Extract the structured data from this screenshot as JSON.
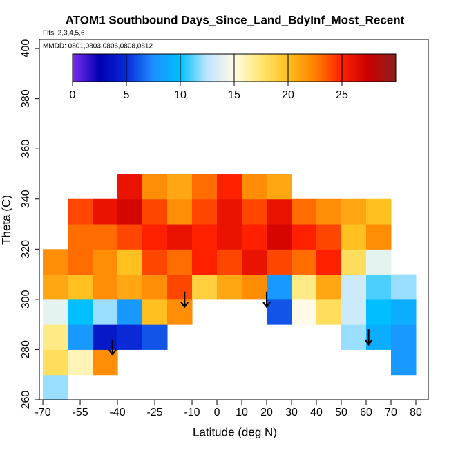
{
  "chart_data": {
    "type": "heatmap",
    "title": "ATOM1 Southbound Days_Since_Land_BdyInf_Most_Recent",
    "subtitle": "Flts: 2,3,4,5,6",
    "annotation": "MMDD: 0801,0803,0806,0808,0812",
    "x_label": "Latitude (deg N)",
    "y_label": "Theta (C)",
    "xlim": [
      -71.4,
      85
    ],
    "ylim": [
      260,
      403.6
    ],
    "xticks": [
      -70,
      -55,
      -40,
      -25,
      -10,
      0,
      10,
      20,
      30,
      40,
      50,
      60,
      70,
      80
    ],
    "yticks": [
      260,
      280,
      300,
      320,
      340,
      360,
      380,
      400
    ],
    "x_bins": [
      -70,
      -60,
      -50,
      -40,
      -30,
      -20,
      -10,
      0,
      10,
      20,
      30,
      40,
      50,
      60,
      70,
      80
    ],
    "y_bins": [
      260,
      270,
      280,
      290,
      300,
      310,
      320,
      330,
      340,
      350
    ],
    "values": [
      [
        12,
        null,
        null,
        null,
        null,
        null,
        null,
        null,
        null,
        null,
        null,
        null,
        null,
        null,
        null
      ],
      [
        18,
        16,
        22,
        null,
        null,
        null,
        null,
        null,
        null,
        null,
        null,
        null,
        null,
        null,
        8
      ],
      [
        17,
        8,
        4,
        5,
        6,
        null,
        null,
        null,
        null,
        null,
        null,
        null,
        12,
        9,
        8
      ],
      [
        14,
        10,
        12,
        8,
        20,
        22,
        null,
        null,
        null,
        6,
        15,
        18,
        13,
        10,
        9
      ],
      [
        21,
        20,
        22,
        21,
        22,
        24,
        19,
        21,
        22,
        8,
        17,
        21,
        13,
        11,
        12
      ],
      [
        22,
        23,
        22,
        20,
        24,
        23,
        25,
        24,
        26,
        24,
        23,
        25,
        18,
        14,
        null
      ],
      [
        null,
        23,
        23,
        24,
        25,
        26,
        25,
        26,
        25,
        27,
        25,
        24,
        20,
        22,
        null
      ],
      [
        null,
        24,
        26,
        27,
        24,
        22,
        24,
        26,
        24,
        26,
        23,
        22,
        21,
        20,
        null
      ],
      [
        null,
        null,
        null,
        26,
        22,
        21,
        23,
        25,
        22,
        21,
        null,
        null,
        null,
        null,
        null
      ]
    ],
    "zlim": [
      0,
      30
    ],
    "zticks": [
      0,
      5,
      10,
      15,
      20,
      25
    ],
    "colors": [
      "#7b2df0",
      "#0000b0",
      "#0a2ad8",
      "#1e90ff",
      "#00bfff",
      "#bfe6ff",
      "#fffbe6",
      "#ffe66e",
      "#ffc020",
      "#ff8000",
      "#ff2000",
      "#c80000",
      "#8b2020"
    ],
    "arrows": {
      "x": [
        -42,
        -13,
        20,
        61
      ],
      "y": [
        278,
        297,
        297,
        282
      ]
    }
  }
}
